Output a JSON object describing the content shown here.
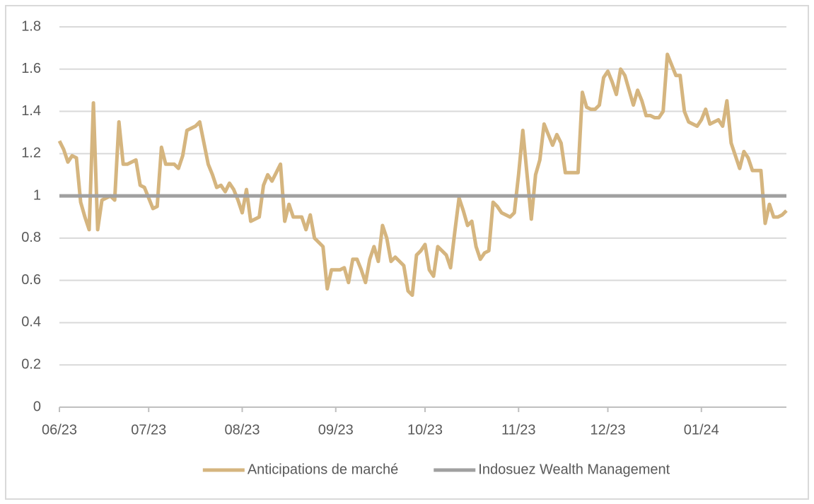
{
  "chart_data": {
    "type": "line",
    "categories": [
      "06/23",
      null,
      null,
      null,
      null,
      null,
      null,
      null,
      null,
      null,
      null,
      null,
      null,
      null,
      null,
      null,
      null,
      null,
      null,
      null,
      null,
      "07/23",
      null,
      null,
      null,
      null,
      null,
      null,
      null,
      null,
      null,
      null,
      null,
      null,
      null,
      null,
      null,
      null,
      null,
      null,
      null,
      null,
      null,
      "08/23",
      null,
      null,
      null,
      null,
      null,
      null,
      null,
      null,
      null,
      null,
      null,
      null,
      null,
      null,
      null,
      null,
      null,
      null,
      null,
      null,
      null,
      "09/23",
      null,
      null,
      null,
      null,
      null,
      null,
      null,
      null,
      null,
      null,
      null,
      null,
      null,
      null,
      null,
      null,
      null,
      null,
      null,
      null,
      "10/23",
      null,
      null,
      null,
      null,
      null,
      null,
      null,
      null,
      null,
      null,
      null,
      null,
      null,
      null,
      null,
      null,
      null,
      null,
      null,
      null,
      null,
      "11/23",
      null,
      null,
      null,
      null,
      null,
      null,
      null,
      null,
      null,
      null,
      null,
      null,
      null,
      null,
      null,
      null,
      null,
      null,
      null,
      null,
      "12/23",
      null,
      null,
      null,
      null,
      null,
      null,
      null,
      null,
      null,
      null,
      null,
      null,
      null,
      null,
      null,
      null,
      null,
      null,
      null,
      null,
      null,
      "01/24",
      null,
      null,
      null,
      null,
      null,
      null,
      null,
      null,
      null,
      null,
      null,
      null,
      null,
      null,
      null,
      null,
      null,
      null,
      null,
      null
    ],
    "series": [
      {
        "name": "Anticipations de marché",
        "color": "#d5b57f",
        "values": [
          1.26,
          1.22,
          1.16,
          1.19,
          1.18,
          0.97,
          0.9,
          0.84,
          1.44,
          0.84,
          0.98,
          0.99,
          1,
          0.98,
          1.35,
          1.15,
          1.15,
          1.16,
          1.17,
          1.05,
          1.04,
          0.99,
          0.94,
          0.95,
          1.23,
          1.15,
          1.15,
          1.15,
          1.13,
          1.19,
          1.31,
          1.32,
          1.33,
          1.35,
          1.25,
          1.15,
          1.1,
          1.04,
          1.05,
          1.02,
          1.06,
          1.03,
          0.98,
          0.92,
          1.03,
          0.88,
          0.89,
          0.9,
          1.05,
          1.1,
          1.07,
          1.11,
          1.15,
          0.88,
          0.96,
          0.9,
          0.9,
          0.9,
          0.84,
          0.91,
          0.8,
          0.78,
          0.76,
          0.56,
          0.65,
          0.65,
          0.65,
          0.66,
          0.59,
          0.7,
          0.7,
          0.65,
          0.59,
          0.7,
          0.76,
          0.69,
          0.86,
          0.8,
          0.69,
          0.71,
          0.69,
          0.67,
          0.55,
          0.53,
          0.72,
          0.74,
          0.77,
          0.65,
          0.62,
          0.76,
          0.74,
          0.72,
          0.66,
          0.83,
          0.99,
          0.93,
          0.86,
          0.88,
          0.76,
          0.7,
          0.73,
          0.74,
          0.97,
          0.95,
          0.92,
          0.91,
          0.9,
          0.92,
          1.1,
          1.31,
          1.1,
          0.89,
          1.1,
          1.17,
          1.34,
          1.29,
          1.24,
          1.29,
          1.25,
          1.11,
          1.11,
          1.11,
          1.11,
          1.49,
          1.42,
          1.41,
          1.41,
          1.43,
          1.56,
          1.59,
          1.54,
          1.48,
          1.6,
          1.57,
          1.5,
          1.43,
          1.5,
          1.45,
          1.38,
          1.38,
          1.37,
          1.37,
          1.4,
          1.67,
          1.62,
          1.57,
          1.57,
          1.4,
          1.35,
          1.34,
          1.33,
          1.36,
          1.41,
          1.34,
          1.35,
          1.36,
          1.33,
          1.45,
          1.25,
          1.19,
          1.13,
          1.21,
          1.18,
          1.12,
          1.12,
          1.12,
          0.87,
          0.96,
          0.9,
          0.9,
          0.91,
          0.93
        ]
      },
      {
        "name": "Indosuez Wealth Management",
        "color": "#a0a0a0",
        "values": [
          1,
          1,
          1,
          1,
          1,
          1,
          1,
          1,
          1,
          1,
          1,
          1,
          1,
          1,
          1,
          1,
          1,
          1,
          1,
          1,
          1,
          1,
          1,
          1,
          1,
          1,
          1,
          1,
          1,
          1,
          1,
          1,
          1,
          1,
          1,
          1,
          1,
          1,
          1,
          1,
          1,
          1,
          1,
          1,
          1,
          1,
          1,
          1,
          1,
          1,
          1,
          1,
          1,
          1,
          1,
          1,
          1,
          1,
          1,
          1,
          1,
          1,
          1,
          1,
          1,
          1,
          1,
          1,
          1,
          1,
          1,
          1,
          1,
          1,
          1,
          1,
          1,
          1,
          1,
          1,
          1,
          1,
          1,
          1,
          1,
          1,
          1,
          1,
          1,
          1,
          1,
          1,
          1,
          1,
          1,
          1,
          1,
          1,
          1,
          1,
          1,
          1,
          1,
          1,
          1,
          1,
          1,
          1,
          1,
          1,
          1,
          1,
          1,
          1,
          1,
          1,
          1,
          1,
          1,
          1,
          1,
          1,
          1,
          1,
          1,
          1,
          1,
          1,
          1,
          1,
          1,
          1,
          1,
          1,
          1,
          1,
          1,
          1,
          1,
          1,
          1,
          1,
          1,
          1,
          1,
          1,
          1,
          1,
          1,
          1,
          1,
          1,
          1,
          1,
          1,
          1,
          1,
          1,
          1,
          1,
          1,
          1,
          1,
          1,
          1,
          1,
          1,
          1,
          1,
          1,
          1,
          1
        ]
      }
    ],
    "ylim": [
      0,
      1.8
    ],
    "yticks": [
      0,
      0.2,
      0.4,
      0.6,
      0.8,
      1,
      1.2,
      1.4,
      1.6,
      1.8
    ],
    "grid": true,
    "legend": "bottom"
  }
}
